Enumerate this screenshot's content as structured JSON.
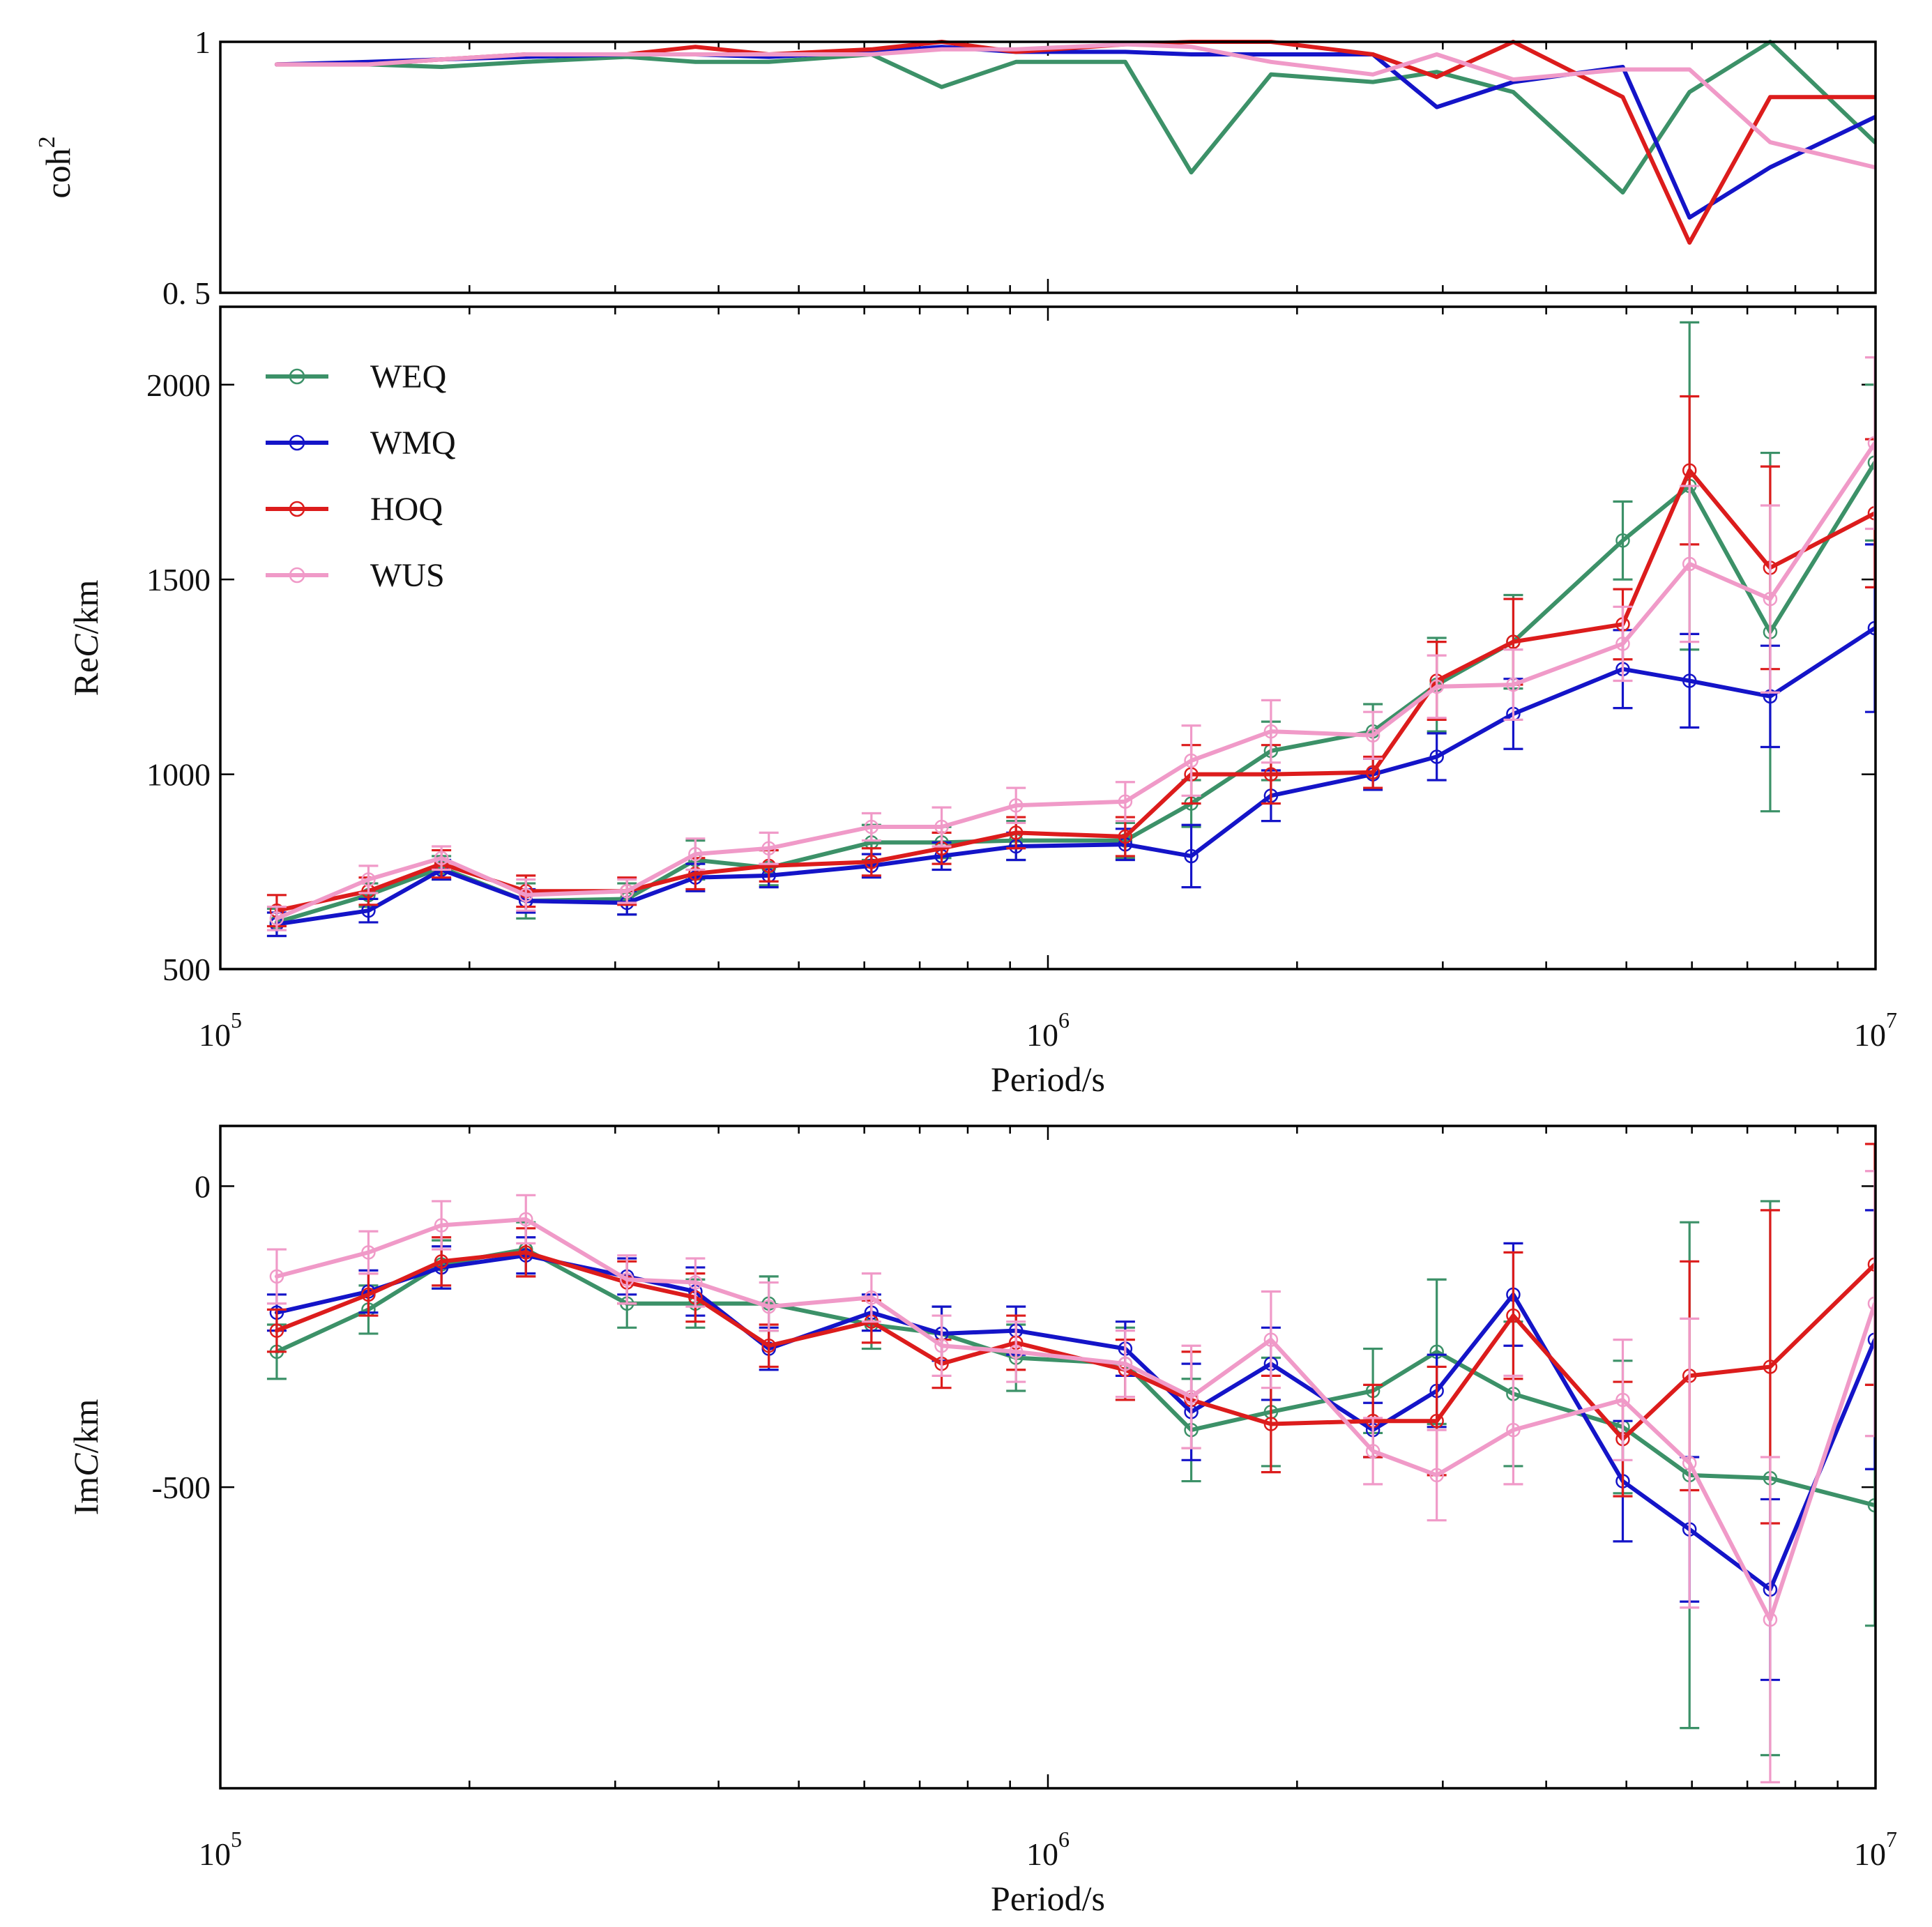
{
  "chart_data": [
    {
      "type": "line",
      "panel": "coherence",
      "xscale": "log",
      "xlim": [
        100000,
        10000000
      ],
      "ylim": [
        0.5,
        1.0
      ],
      "ylabel": "coh",
      "ylabel_sup": "2",
      "ytick_labels": [
        "1",
        "0. 5"
      ],
      "ytick_values": [
        1.0,
        0.5
      ],
      "show_x_tick_labels": false,
      "x": [
        117000,
        151000,
        185000,
        234000,
        310000,
        375000,
        460000,
        612000,
        744000,
        915000,
        1240000,
        1490000,
        1860000,
        2470000,
        2950000,
        3650000,
        4950000,
        5960000,
        7460000,
        9980000
      ],
      "series": [
        {
          "name": "WEQ",
          "color": "#3c9168",
          "values": [
            0.955,
            0.955,
            0.95,
            0.96,
            0.97,
            0.96,
            0.96,
            0.975,
            0.91,
            0.96,
            0.96,
            0.74,
            0.935,
            0.92,
            0.94,
            0.9,
            0.7,
            0.9,
            1.0,
            0.8
          ]
        },
        {
          "name": "WMQ",
          "color": "#1414c8",
          "values": [
            0.955,
            0.96,
            0.965,
            0.97,
            0.975,
            0.975,
            0.97,
            0.98,
            0.99,
            0.98,
            0.98,
            0.975,
            0.975,
            0.975,
            0.87,
            0.92,
            0.95,
            0.65,
            0.75,
            0.85
          ]
        },
        {
          "name": "HOQ",
          "color": "#dc1c1c",
          "values": [
            0.955,
            0.955,
            0.965,
            0.975,
            0.975,
            0.99,
            0.975,
            0.985,
            1.0,
            0.98,
            0.995,
            1.0,
            1.0,
            0.975,
            0.93,
            1.0,
            0.89,
            0.6,
            0.89,
            0.89
          ]
        },
        {
          "name": "WUS",
          "color": "#f09ac8",
          "values": [
            0.955,
            0.955,
            0.965,
            0.975,
            0.975,
            0.975,
            0.975,
            0.975,
            0.985,
            0.985,
            0.995,
            0.99,
            0.96,
            0.935,
            0.975,
            0.925,
            0.945,
            0.945,
            0.8,
            0.75
          ]
        }
      ]
    },
    {
      "type": "line",
      "panel": "real",
      "xscale": "log",
      "xlim": [
        100000,
        10000000
      ],
      "ylim": [
        500,
        2200
      ],
      "ylabel": "Re",
      "ylabel_italic": "C",
      "ylabel_unit": "/km",
      "ytick_labels": [
        "500",
        "1000",
        "1500",
        "2000"
      ],
      "ytick_values": [
        500,
        1000,
        1500,
        2000
      ],
      "xlabel": "Period/s",
      "xtick_bases": [
        "10",
        "10",
        "10"
      ],
      "xtick_exponents": [
        "5",
        "6",
        "7"
      ],
      "xtick_values": [
        100000,
        1000000,
        10000000
      ],
      "legend": "upper-left",
      "x": [
        117000,
        151000,
        185000,
        234000,
        310000,
        375000,
        460000,
        612000,
        744000,
        915000,
        1240000,
        1490000,
        1860000,
        2470000,
        2950000,
        3650000,
        4950000,
        5960000,
        7460000,
        9980000
      ],
      "series": [
        {
          "name": "WEQ",
          "color": "#3c9168",
          "values": [
            620,
            690,
            760,
            675,
            680,
            780,
            760,
            825,
            825,
            830,
            830,
            925,
            1060,
            1110,
            1230,
            1340,
            1600,
            1740,
            1365,
            1800
          ],
          "errors": [
            35,
            30,
            30,
            45,
            40,
            50,
            45,
            45,
            40,
            50,
            45,
            60,
            75,
            70,
            120,
            120,
            100,
            420,
            460,
            200
          ]
        },
        {
          "name": "WMQ",
          "color": "#1414c8",
          "values": [
            615,
            650,
            755,
            675,
            670,
            735,
            740,
            765,
            790,
            815,
            820,
            790,
            945,
            1000,
            1045,
            1155,
            1270,
            1240,
            1200,
            1375
          ],
          "errors": [
            30,
            30,
            25,
            30,
            30,
            35,
            30,
            30,
            35,
            35,
            40,
            80,
            65,
            40,
            60,
            90,
            100,
            120,
            130,
            215
          ]
        },
        {
          "name": "HOQ",
          "color": "#dc1c1c",
          "values": [
            650,
            700,
            770,
            700,
            700,
            745,
            765,
            775,
            810,
            850,
            840,
            1000,
            1000,
            1005,
            1240,
            1340,
            1385,
            1780,
            1530,
            1670
          ],
          "errors": [
            40,
            35,
            35,
            40,
            35,
            40,
            40,
            35,
            40,
            40,
            50,
            75,
            75,
            40,
            100,
            110,
            90,
            190,
            260,
            190
          ]
        },
        {
          "name": "WUS",
          "color": "#f09ac8",
          "values": [
            630,
            730,
            785,
            690,
            700,
            795,
            810,
            865,
            865,
            920,
            930,
            1035,
            1110,
            1100,
            1225,
            1230,
            1335,
            1540,
            1450,
            1850
          ],
          "errors": [
            30,
            35,
            30,
            40,
            30,
            40,
            40,
            35,
            50,
            45,
            50,
            90,
            80,
            60,
            80,
            90,
            95,
            200,
            240,
            220
          ]
        }
      ]
    },
    {
      "type": "line",
      "panel": "imaginary",
      "xscale": "log",
      "xlim": [
        100000,
        10000000
      ],
      "ylim": [
        -1000,
        100
      ],
      "ylabel": "Im",
      "ylabel_italic": "C",
      "ylabel_unit": "/km",
      "ytick_labels": [
        "-500",
        "0"
      ],
      "ytick_values": [
        -500,
        0
      ],
      "xlabel": "Period/s",
      "xtick_bases": [
        "10",
        "10",
        "10"
      ],
      "xtick_exponents": [
        "5",
        "6",
        "7"
      ],
      "xtick_values": [
        100000,
        1000000,
        10000000
      ],
      "x": [
        117000,
        151000,
        185000,
        234000,
        310000,
        375000,
        460000,
        612000,
        744000,
        915000,
        1240000,
        1490000,
        1860000,
        2470000,
        2950000,
        3650000,
        4950000,
        5960000,
        7460000,
        9980000
      ],
      "series": [
        {
          "name": "WEQ",
          "color": "#3c9168",
          "values": [
            -275,
            -205,
            -130,
            -105,
            -195,
            -195,
            -195,
            -230,
            -245,
            -285,
            -295,
            -405,
            -375,
            -340,
            -275,
            -345,
            -400,
            -480,
            -485,
            -530
          ],
          "errors": [
            45,
            40,
            40,
            45,
            40,
            40,
            45,
            40,
            45,
            55,
            60,
            85,
            90,
            70,
            120,
            120,
            110,
            420,
            460,
            200
          ]
        },
        {
          "name": "WMQ",
          "color": "#1414c8",
          "values": [
            -210,
            -175,
            -135,
            -115,
            -150,
            -175,
            -270,
            -210,
            -245,
            -240,
            -270,
            -375,
            -295,
            -405,
            -340,
            -180,
            -490,
            -570,
            -670,
            -255
          ],
          "errors": [
            30,
            35,
            35,
            30,
            30,
            40,
            35,
            30,
            45,
            40,
            45,
            80,
            60,
            45,
            60,
            85,
            100,
            120,
            150,
            215
          ]
        },
        {
          "name": "HOQ",
          "color": "#dc1c1c",
          "values": [
            -240,
            -180,
            -125,
            -110,
            -160,
            -185,
            -265,
            -225,
            -295,
            -260,
            -305,
            -355,
            -395,
            -390,
            -390,
            -215,
            -420,
            -315,
            -300,
            -130
          ],
          "errors": [
            35,
            35,
            40,
            40,
            35,
            40,
            35,
            35,
            40,
            45,
            50,
            80,
            80,
            60,
            90,
            105,
            95,
            190,
            260,
            200
          ]
        },
        {
          "name": "WUS",
          "color": "#f09ac8",
          "values": [
            -150,
            -110,
            -65,
            -55,
            -155,
            -160,
            -200,
            -185,
            -265,
            -275,
            -295,
            -350,
            -255,
            -440,
            -480,
            -405,
            -355,
            -460,
            -720,
            -195
          ],
          "errors": [
            45,
            35,
            40,
            40,
            40,
            40,
            40,
            40,
            50,
            50,
            55,
            85,
            80,
            55,
            75,
            90,
            100,
            240,
            270,
            220
          ]
        }
      ]
    }
  ]
}
